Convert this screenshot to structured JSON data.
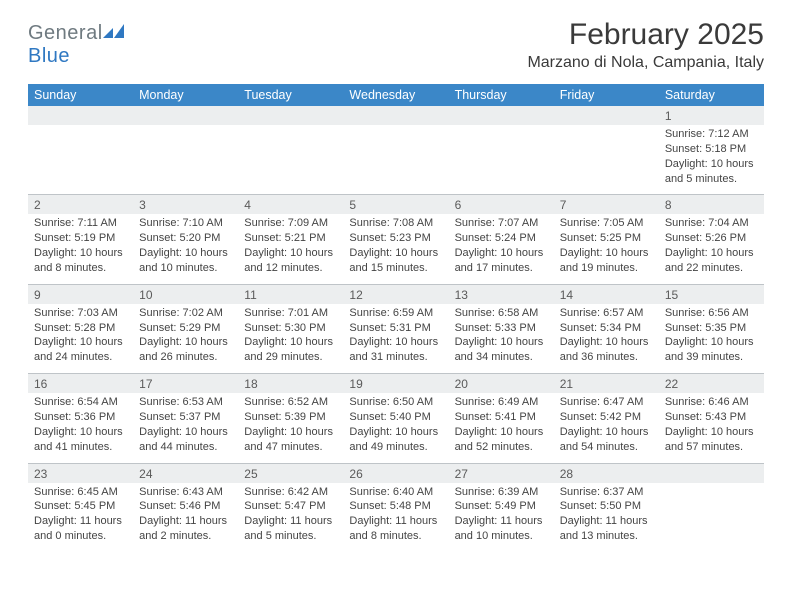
{
  "logo": {
    "part1": "General",
    "part2": "Blue"
  },
  "title": "February 2025",
  "location": "Marzano di Nola, Campania, Italy",
  "colors": {
    "header_bg": "#3b87c8",
    "header_fg": "#ffffff",
    "alt_row_bg": "#eceeef",
    "border": "#bfc4c8",
    "logo_gray": "#6f7a80",
    "logo_blue": "#2f78c2"
  },
  "day_headers": [
    "Sunday",
    "Monday",
    "Tuesday",
    "Wednesday",
    "Thursday",
    "Friday",
    "Saturday"
  ],
  "weeks": [
    [
      {
        "date": "",
        "sunrise": "",
        "sunset": "",
        "daylight": ""
      },
      {
        "date": "",
        "sunrise": "",
        "sunset": "",
        "daylight": ""
      },
      {
        "date": "",
        "sunrise": "",
        "sunset": "",
        "daylight": ""
      },
      {
        "date": "",
        "sunrise": "",
        "sunset": "",
        "daylight": ""
      },
      {
        "date": "",
        "sunrise": "",
        "sunset": "",
        "daylight": ""
      },
      {
        "date": "",
        "sunrise": "",
        "sunset": "",
        "daylight": ""
      },
      {
        "date": "1",
        "sunrise": "Sunrise: 7:12 AM",
        "sunset": "Sunset: 5:18 PM",
        "daylight": "Daylight: 10 hours and 5 minutes."
      }
    ],
    [
      {
        "date": "2",
        "sunrise": "Sunrise: 7:11 AM",
        "sunset": "Sunset: 5:19 PM",
        "daylight": "Daylight: 10 hours and 8 minutes."
      },
      {
        "date": "3",
        "sunrise": "Sunrise: 7:10 AM",
        "sunset": "Sunset: 5:20 PM",
        "daylight": "Daylight: 10 hours and 10 minutes."
      },
      {
        "date": "4",
        "sunrise": "Sunrise: 7:09 AM",
        "sunset": "Sunset: 5:21 PM",
        "daylight": "Daylight: 10 hours and 12 minutes."
      },
      {
        "date": "5",
        "sunrise": "Sunrise: 7:08 AM",
        "sunset": "Sunset: 5:23 PM",
        "daylight": "Daylight: 10 hours and 15 minutes."
      },
      {
        "date": "6",
        "sunrise": "Sunrise: 7:07 AM",
        "sunset": "Sunset: 5:24 PM",
        "daylight": "Daylight: 10 hours and 17 minutes."
      },
      {
        "date": "7",
        "sunrise": "Sunrise: 7:05 AM",
        "sunset": "Sunset: 5:25 PM",
        "daylight": "Daylight: 10 hours and 19 minutes."
      },
      {
        "date": "8",
        "sunrise": "Sunrise: 7:04 AM",
        "sunset": "Sunset: 5:26 PM",
        "daylight": "Daylight: 10 hours and 22 minutes."
      }
    ],
    [
      {
        "date": "9",
        "sunrise": "Sunrise: 7:03 AM",
        "sunset": "Sunset: 5:28 PM",
        "daylight": "Daylight: 10 hours and 24 minutes."
      },
      {
        "date": "10",
        "sunrise": "Sunrise: 7:02 AM",
        "sunset": "Sunset: 5:29 PM",
        "daylight": "Daylight: 10 hours and 26 minutes."
      },
      {
        "date": "11",
        "sunrise": "Sunrise: 7:01 AM",
        "sunset": "Sunset: 5:30 PM",
        "daylight": "Daylight: 10 hours and 29 minutes."
      },
      {
        "date": "12",
        "sunrise": "Sunrise: 6:59 AM",
        "sunset": "Sunset: 5:31 PM",
        "daylight": "Daylight: 10 hours and 31 minutes."
      },
      {
        "date": "13",
        "sunrise": "Sunrise: 6:58 AM",
        "sunset": "Sunset: 5:33 PM",
        "daylight": "Daylight: 10 hours and 34 minutes."
      },
      {
        "date": "14",
        "sunrise": "Sunrise: 6:57 AM",
        "sunset": "Sunset: 5:34 PM",
        "daylight": "Daylight: 10 hours and 36 minutes."
      },
      {
        "date": "15",
        "sunrise": "Sunrise: 6:56 AM",
        "sunset": "Sunset: 5:35 PM",
        "daylight": "Daylight: 10 hours and 39 minutes."
      }
    ],
    [
      {
        "date": "16",
        "sunrise": "Sunrise: 6:54 AM",
        "sunset": "Sunset: 5:36 PM",
        "daylight": "Daylight: 10 hours and 41 minutes."
      },
      {
        "date": "17",
        "sunrise": "Sunrise: 6:53 AM",
        "sunset": "Sunset: 5:37 PM",
        "daylight": "Daylight: 10 hours and 44 minutes."
      },
      {
        "date": "18",
        "sunrise": "Sunrise: 6:52 AM",
        "sunset": "Sunset: 5:39 PM",
        "daylight": "Daylight: 10 hours and 47 minutes."
      },
      {
        "date": "19",
        "sunrise": "Sunrise: 6:50 AM",
        "sunset": "Sunset: 5:40 PM",
        "daylight": "Daylight: 10 hours and 49 minutes."
      },
      {
        "date": "20",
        "sunrise": "Sunrise: 6:49 AM",
        "sunset": "Sunset: 5:41 PM",
        "daylight": "Daylight: 10 hours and 52 minutes."
      },
      {
        "date": "21",
        "sunrise": "Sunrise: 6:47 AM",
        "sunset": "Sunset: 5:42 PM",
        "daylight": "Daylight: 10 hours and 54 minutes."
      },
      {
        "date": "22",
        "sunrise": "Sunrise: 6:46 AM",
        "sunset": "Sunset: 5:43 PM",
        "daylight": "Daylight: 10 hours and 57 minutes."
      }
    ],
    [
      {
        "date": "23",
        "sunrise": "Sunrise: 6:45 AM",
        "sunset": "Sunset: 5:45 PM",
        "daylight": "Daylight: 11 hours and 0 minutes."
      },
      {
        "date": "24",
        "sunrise": "Sunrise: 6:43 AM",
        "sunset": "Sunset: 5:46 PM",
        "daylight": "Daylight: 11 hours and 2 minutes."
      },
      {
        "date": "25",
        "sunrise": "Sunrise: 6:42 AM",
        "sunset": "Sunset: 5:47 PM",
        "daylight": "Daylight: 11 hours and 5 minutes."
      },
      {
        "date": "26",
        "sunrise": "Sunrise: 6:40 AM",
        "sunset": "Sunset: 5:48 PM",
        "daylight": "Daylight: 11 hours and 8 minutes."
      },
      {
        "date": "27",
        "sunrise": "Sunrise: 6:39 AM",
        "sunset": "Sunset: 5:49 PM",
        "daylight": "Daylight: 11 hours and 10 minutes."
      },
      {
        "date": "28",
        "sunrise": "Sunrise: 6:37 AM",
        "sunset": "Sunset: 5:50 PM",
        "daylight": "Daylight: 11 hours and 13 minutes."
      },
      {
        "date": "",
        "sunrise": "",
        "sunset": "",
        "daylight": ""
      }
    ]
  ]
}
